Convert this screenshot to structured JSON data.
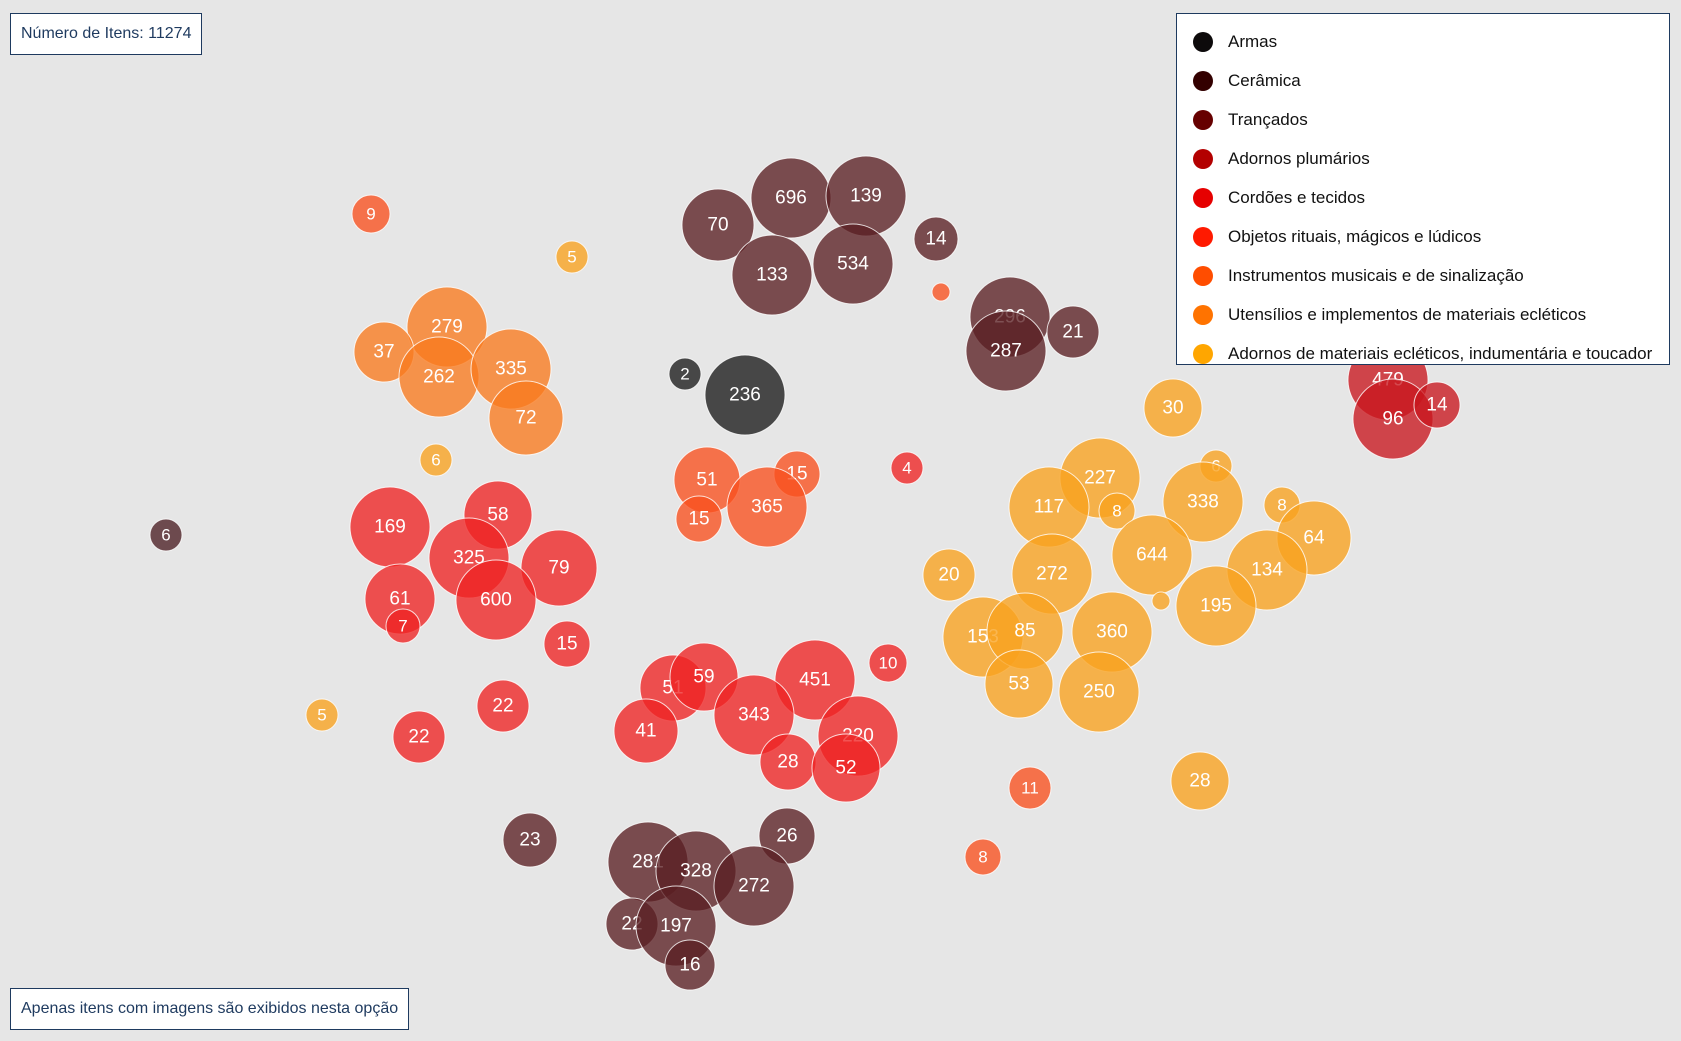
{
  "header": {
    "count_label": "Número de Itens: 11274"
  },
  "footer": {
    "note": "Apenas itens com imagens são exibidos nesta opção"
  },
  "legend": [
    {
      "label": "Armas",
      "color": "#0d0a0b"
    },
    {
      "label": "Cerâmica",
      "color": "#330000"
    },
    {
      "label": "Trançados",
      "color": "#660000"
    },
    {
      "label": "Adornos plumários",
      "color": "#b30000"
    },
    {
      "label": "Cordões e tecidos",
      "color": "#e60000"
    },
    {
      "label": "Objetos rituais, mágicos e lúdicos",
      "color": "#ff1a00"
    },
    {
      "label": "Instrumentos musicais e de sinalização",
      "color": "#ff4d00"
    },
    {
      "label": "Utensílios e implementos de materiais ecléticos",
      "color": "#ff7300"
    },
    {
      "label": "Adornos de materiais ecléticos, indumentária e toucador",
      "color": "#ffa600"
    }
  ],
  "chart_data": {
    "type": "bubble",
    "total_items": 11274,
    "bubbles": [
      {
        "label": "9",
        "value": 9,
        "group": "orange-red"
      },
      {
        "label": "5",
        "value": 5,
        "group": "amber"
      },
      {
        "label": "279",
        "value": 279,
        "group": "orange"
      },
      {
        "label": "37",
        "value": 37,
        "group": "orange"
      },
      {
        "label": "262",
        "value": 262,
        "group": "orange"
      },
      {
        "label": "335",
        "value": 335,
        "group": "orange"
      },
      {
        "label": "72",
        "value": 72,
        "group": "orange"
      },
      {
        "label": "6",
        "value": 6,
        "group": "amber"
      },
      {
        "label": "6",
        "value": 6,
        "group": "dark-brown"
      },
      {
        "label": "169",
        "value": 169,
        "group": "red"
      },
      {
        "label": "58",
        "value": 58,
        "group": "red"
      },
      {
        "label": "325",
        "value": 325,
        "group": "red"
      },
      {
        "label": "79",
        "value": 79,
        "group": "red"
      },
      {
        "label": "61",
        "value": 61,
        "group": "red"
      },
      {
        "label": "600",
        "value": 600,
        "group": "red"
      },
      {
        "label": "7",
        "value": 7,
        "group": "red"
      },
      {
        "label": "15",
        "value": 15,
        "group": "red"
      },
      {
        "label": "5",
        "value": 5,
        "group": "amber"
      },
      {
        "label": "22",
        "value": 22,
        "group": "red"
      },
      {
        "label": "22",
        "value": 22,
        "group": "red"
      },
      {
        "label": "70",
        "value": 70,
        "group": "brown"
      },
      {
        "label": "696",
        "value": 696,
        "group": "brown"
      },
      {
        "label": "139",
        "value": 139,
        "group": "brown"
      },
      {
        "label": "133",
        "value": 133,
        "group": "brown"
      },
      {
        "label": "534",
        "value": 534,
        "group": "brown"
      },
      {
        "label": "14",
        "value": 14,
        "group": "brown"
      },
      {
        "label": "",
        "value": 1,
        "group": "orange-red"
      },
      {
        "label": "296",
        "value": 296,
        "group": "brown"
      },
      {
        "label": "287",
        "value": 287,
        "group": "brown"
      },
      {
        "label": "21",
        "value": 21,
        "group": "brown"
      },
      {
        "label": "2",
        "value": 2,
        "group": "black"
      },
      {
        "label": "236",
        "value": 236,
        "group": "black"
      },
      {
        "label": "51",
        "value": 51,
        "group": "orange-red"
      },
      {
        "label": "15",
        "value": 15,
        "group": "orange-red"
      },
      {
        "label": "15",
        "value": 15,
        "group": "orange-red"
      },
      {
        "label": "365",
        "value": 365,
        "group": "orange-red"
      },
      {
        "label": "4",
        "value": 4,
        "group": "red"
      },
      {
        "label": "51",
        "value": 51,
        "group": "red"
      },
      {
        "label": "59",
        "value": 59,
        "group": "red"
      },
      {
        "label": "451",
        "value": 451,
        "group": "red"
      },
      {
        "label": "10",
        "value": 10,
        "group": "red"
      },
      {
        "label": "343",
        "value": 343,
        "group": "red"
      },
      {
        "label": "41",
        "value": 41,
        "group": "red"
      },
      {
        "label": "220",
        "value": 220,
        "group": "red"
      },
      {
        "label": "28",
        "value": 28,
        "group": "red"
      },
      {
        "label": "52",
        "value": 52,
        "group": "red"
      },
      {
        "label": "11",
        "value": 11,
        "group": "orange-red"
      },
      {
        "label": "8",
        "value": 8,
        "group": "orange-red"
      },
      {
        "label": "23",
        "value": 23,
        "group": "brown"
      },
      {
        "label": "26",
        "value": 26,
        "group": "brown"
      },
      {
        "label": "281",
        "value": 281,
        "group": "brown"
      },
      {
        "label": "328",
        "value": 328,
        "group": "brown"
      },
      {
        "label": "272",
        "value": 272,
        "group": "brown"
      },
      {
        "label": "22",
        "value": 22,
        "group": "brown"
      },
      {
        "label": "197",
        "value": 197,
        "group": "brown"
      },
      {
        "label": "16",
        "value": 16,
        "group": "brown"
      },
      {
        "label": "479",
        "value": 479,
        "group": "crimson"
      },
      {
        "label": "96",
        "value": 96,
        "group": "crimson"
      },
      {
        "label": "14",
        "value": 14,
        "group": "crimson"
      },
      {
        "label": "30",
        "value": 30,
        "group": "amber"
      },
      {
        "label": "227",
        "value": 227,
        "group": "amber"
      },
      {
        "label": "6",
        "value": 6,
        "group": "amber"
      },
      {
        "label": "117",
        "value": 117,
        "group": "amber"
      },
      {
        "label": "8",
        "value": 8,
        "group": "amber"
      },
      {
        "label": "338",
        "value": 338,
        "group": "amber"
      },
      {
        "label": "8",
        "value": 8,
        "group": "amber"
      },
      {
        "label": "64",
        "value": 64,
        "group": "amber"
      },
      {
        "label": "20",
        "value": 20,
        "group": "amber"
      },
      {
        "label": "272",
        "value": 272,
        "group": "amber"
      },
      {
        "label": "644",
        "value": 644,
        "group": "amber"
      },
      {
        "label": "134",
        "value": 134,
        "group": "amber"
      },
      {
        "label": "",
        "value": 1,
        "group": "amber"
      },
      {
        "label": "195",
        "value": 195,
        "group": "amber"
      },
      {
        "label": "153",
        "value": 153,
        "group": "amber"
      },
      {
        "label": "85",
        "value": 85,
        "group": "amber"
      },
      {
        "label": "360",
        "value": 360,
        "group": "amber"
      },
      {
        "label": "53",
        "value": 53,
        "group": "amber"
      },
      {
        "label": "250",
        "value": 250,
        "group": "amber"
      },
      {
        "label": "28",
        "value": 28,
        "group": "amber"
      }
    ],
    "group_colors": {
      "black": "#2a2a2a",
      "dark-brown": "#4a1e22",
      "brown": "#5a1f22",
      "crimson": "#c8161e",
      "red": "#ee2222",
      "orange-red": "#f8501e",
      "orange": "#f87a1e",
      "amber": "#f8a21e"
    }
  }
}
